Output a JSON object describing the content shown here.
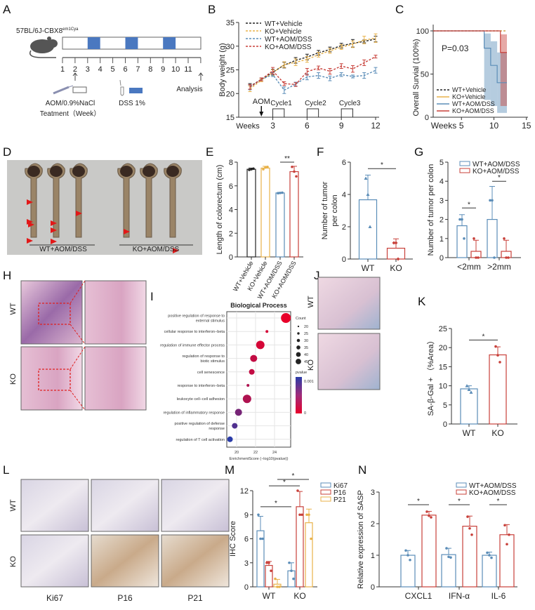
{
  "panel_letters": [
    "A",
    "B",
    "C",
    "D",
    "E",
    "F",
    "G",
    "H",
    "I",
    "J",
    "K",
    "L",
    "M",
    "N"
  ],
  "panel_a": {
    "strain": "57BL/6J-CBX8",
    "strain_sup": "em1Cya",
    "week_labels": [
      "1",
      "2",
      "3",
      "4",
      "5",
      "6",
      "7",
      "8",
      "9",
      "10",
      "11"
    ],
    "dss_weeks": [
      3,
      6,
      9
    ],
    "treatment_label": "AOM/0.9%NaCl",
    "treatment_sub": "Teatment（Week）",
    "dss_label": "DSS 1%",
    "analysis_label": "Analysis",
    "colors": {
      "dss": "#4a78c0"
    }
  },
  "panel_d": {
    "wt_label": "WT+AOM/DSS",
    "ko_label": "KO+AOM/DSS"
  },
  "panel_h": {
    "row_labels": [
      "WT",
      "KO"
    ]
  },
  "panel_j": {
    "row_labels": [
      "WT",
      "KO"
    ]
  },
  "panel_l": {
    "row_labels": [
      "WT",
      "KO"
    ],
    "col_labels": [
      "Ki67",
      "P16",
      "P21"
    ]
  },
  "colors": {
    "wt_vehicle": "#222222",
    "ko_vehicle": "#e8b24a",
    "wt_aom": "#5b8db8",
    "ko_aom": "#c8403a",
    "p21": "#e8b24a"
  },
  "chart_data": [
    {
      "id": "B",
      "type": "line",
      "ylabel": "Body weight (g)",
      "xlabel": "Weeks",
      "ylim": [
        15,
        35
      ],
      "yticks": [
        15,
        20,
        25,
        30,
        35
      ],
      "xticks": [
        3,
        6,
        9,
        12
      ],
      "x": [
        1,
        2,
        3,
        4,
        5,
        6,
        7,
        8,
        9,
        10,
        11,
        12
      ],
      "series": [
        {
          "name": "WT+Vehicle",
          "color": "#222222",
          "values": [
            21.5,
            23,
            24.5,
            26,
            27,
            27.7,
            28.6,
            29.3,
            30.1,
            30.6,
            31,
            31.5
          ],
          "error": [
            0.6,
            0.3,
            0.6,
            0.6,
            0.6,
            0.6,
            0.5,
            0.5,
            0.5,
            0.8,
            0.3,
            0.6
          ]
        },
        {
          "name": "KO+Vehicle",
          "color": "#e8b24a",
          "values": [
            21,
            22.8,
            24.4,
            26.1,
            26.6,
            27.2,
            28.2,
            29,
            29.8,
            30.4,
            31.3,
            31.7
          ],
          "error": [
            0.6,
            0.3,
            0.6,
            0.6,
            0.7,
            0.6,
            0.5,
            0.5,
            0.5,
            0.7,
            0.8,
            0.9
          ]
        },
        {
          "name": "WT+AOM/DSS",
          "color": "#5b8db8",
          "values": [
            21.3,
            23,
            24,
            20.7,
            22,
            23.5,
            23.8,
            23.2,
            24,
            23.6,
            23.8,
            24.9
          ],
          "error": [
            0.5,
            0.3,
            0.4,
            0.7,
            0.4,
            0.6,
            0.6,
            0.5,
            0.4,
            0.3,
            0.6,
            0.6
          ]
        },
        {
          "name": "KO+AOM/DSS",
          "color": "#c8403a",
          "values": [
            21.4,
            23,
            24.8,
            22.1,
            21.9,
            24.6,
            25.4,
            24.7,
            25.8,
            25.2,
            26.5,
            27.8
          ],
          "error": [
            0.5,
            0.3,
            0.7,
            0.4,
            0.4,
            0.7,
            0.4,
            0.6,
            0.5,
            0.7,
            0.6,
            0.3
          ]
        }
      ],
      "annotations": {
        "arrow_label": "AOM",
        "arrow_week": 2,
        "cycles": [
          {
            "label": "Cycle1",
            "start": 3
          },
          {
            "label": "Cycle2",
            "start": 6
          },
          {
            "label": "Cycle3",
            "start": 9
          }
        ]
      }
    },
    {
      "id": "C",
      "type": "line",
      "ylabel": "Overall Survial (100%)",
      "xlabel": "Weeks",
      "ylim": [
        0,
        100
      ],
      "yticks": [
        0,
        50,
        100
      ],
      "xlim": [
        0,
        15
      ],
      "xticks": [
        5,
        10,
        15
      ],
      "pvalue_label": "P=0.03",
      "series": [
        {
          "name": "WT+Vehicle",
          "color": "#222222",
          "steps": [
            [
              0,
              100
            ],
            [
              12,
              100
            ]
          ]
        },
        {
          "name": "KO+Vehicle",
          "color": "#e8b24a",
          "steps": [
            [
              0,
              100
            ],
            [
              12,
              100
            ]
          ]
        },
        {
          "name": "WT+AOM/DSS",
          "color": "#5b8db8",
          "steps": [
            [
              0,
              100
            ],
            [
              8.5,
              80
            ],
            [
              9.5,
              60
            ],
            [
              10.5,
              40
            ],
            [
              12,
              40
            ]
          ],
          "ci": [
            [
              8.5,
              20,
              97
            ],
            [
              9.5,
              13,
              88
            ],
            [
              10.5,
              5,
              75
            ],
            [
              12,
              5,
              75
            ]
          ]
        },
        {
          "name": "KO+AOM/DSS",
          "color": "#c8403a",
          "steps": [
            [
              0,
              100
            ],
            [
              11,
              75
            ],
            [
              12,
              75
            ]
          ],
          "ci": [
            [
              11,
              13,
              96
            ],
            [
              12,
              13,
              96
            ]
          ]
        }
      ]
    },
    {
      "id": "E",
      "type": "bar",
      "ylabel": "Length of colorectum (cm)",
      "ylim": [
        0,
        8
      ],
      "yticks": [
        0,
        2,
        4,
        6,
        8
      ],
      "groups": [
        "WT+Vehicle",
        "KO+Vehicle",
        "WT+AOM/DSS",
        "KO+AOM/DSS"
      ],
      "series": [
        {
          "name": "WT+Vehicle",
          "color": "#222222"
        },
        {
          "name": "KO+Vehicle",
          "color": "#e8b24a"
        },
        {
          "name": "WT+AOM/DSS",
          "color": "#5b8db8"
        },
        {
          "name": "KO+AOM/DSS",
          "color": "#c8403a"
        }
      ],
      "bars": [
        {
          "group": 0,
          "series": 0,
          "value": 7.4,
          "error": 0.1,
          "points": [
            7.35,
            7.4,
            7.45
          ]
        },
        {
          "group": 1,
          "series": 1,
          "value": 7.5,
          "error": 0.15,
          "points": [
            7.4,
            7.55,
            7.6
          ]
        },
        {
          "group": 2,
          "series": 2,
          "value": 5.4,
          "error": 0.05,
          "points": [
            5.38,
            5.4,
            5.42
          ]
        },
        {
          "group": 3,
          "series": 3,
          "value": 7.2,
          "error": 0.45,
          "points": [
            7.6,
            7.2,
            6.8
          ]
        }
      ],
      "significance": [
        {
          "from": 2,
          "to": 3,
          "y": 8.0,
          "label": "**"
        }
      ]
    },
    {
      "id": "F",
      "type": "bar",
      "ylabel": [
        "Number of tumor",
        "per colon"
      ],
      "ylim": [
        0,
        6
      ],
      "yticks": [
        0,
        2,
        4,
        6
      ],
      "groups": [
        "WT",
        "KO"
      ],
      "series": [
        {
          "name": "WT",
          "color": "#5b8db8",
          "marker": "triangle"
        },
        {
          "name": "KO",
          "color": "#c8403a",
          "marker": "diamond"
        }
      ],
      "bars": [
        {
          "group": 0,
          "series": 0,
          "value": 3.67,
          "error": 1.53,
          "points": [
            5,
            4,
            2
          ]
        },
        {
          "group": 1,
          "series": 1,
          "value": 0.67,
          "error": 0.58,
          "points": [
            1,
            1,
            0
          ]
        }
      ],
      "significance": [
        {
          "from": 0,
          "to": 1,
          "y": 5.6,
          "label": "*"
        }
      ]
    },
    {
      "id": "G",
      "type": "bar",
      "ylabel": "Number of tumor per colon",
      "ylim": [
        0,
        5
      ],
      "yticks": [
        0,
        1,
        2,
        3,
        4,
        5
      ],
      "groups": [
        "<2mm",
        ">2mm"
      ],
      "series": [
        {
          "name": "WT+AOM/DSS",
          "color": "#5b8db8"
        },
        {
          "name": "KO+AOM/DSS",
          "color": "#c8403a"
        }
      ],
      "bars": [
        {
          "group": 0,
          "series": 0,
          "value": 1.67,
          "error": 0.58,
          "points": [
            2,
            2,
            1
          ]
        },
        {
          "group": 0,
          "series": 1,
          "value": 0.33,
          "error": 0.58,
          "points": [
            1,
            0,
            0
          ]
        },
        {
          "group": 1,
          "series": 0,
          "value": 2.0,
          "error": 1.73,
          "points": [
            3,
            3,
            0
          ]
        },
        {
          "group": 1,
          "series": 1,
          "value": 0.33,
          "error": 0.58,
          "points": [
            1,
            0,
            0
          ]
        }
      ],
      "significance": [
        {
          "from": 0,
          "to": 1,
          "y": 2.6,
          "label": "*"
        },
        {
          "from": 2,
          "to": 3,
          "y": 4.0,
          "label": "*"
        }
      ]
    },
    {
      "id": "I",
      "type": "scatter",
      "title": "Biological Process",
      "xlabel": "EnrichmentScore (−log10(pvalue))",
      "xlim": [
        19,
        25.8
      ],
      "xticks": [
        20,
        22,
        24
      ],
      "terms": [
        {
          "term": "positive regulation of response to external stimulus",
          "score": 25.2,
          "count": 45,
          "pvalue": 0.0
        },
        {
          "term": "cellular response to interferon−beta",
          "score": 23.2,
          "count": 20,
          "pvalue": 0.0001
        },
        {
          "term": "regulation of immune effector process",
          "score": 22.5,
          "count": 40,
          "pvalue": 0.0001
        },
        {
          "term": "regulation of response to biotic stimulus",
          "score": 21.8,
          "count": 35,
          "pvalue": 0.0002
        },
        {
          "term": "cell senescence",
          "score": 21.6,
          "count": 30,
          "pvalue": 0.0002,
          "highlight": true
        },
        {
          "term": "response to interferon−beta",
          "score": 21.2,
          "count": 20,
          "pvalue": 0.0003
        },
        {
          "term": "leukocyte cell−cell adhesion",
          "score": 21.1,
          "count": 40,
          "pvalue": 0.0003
        },
        {
          "term": "regulation of inflammatory response",
          "score": 20.2,
          "count": 35,
          "pvalue": 0.0006
        },
        {
          "term": "positive regulation of defense response",
          "score": 19.8,
          "count": 30,
          "pvalue": 0.0008
        },
        {
          "term": "regulation of T cell activation",
          "score": 19.3,
          "count": 30,
          "pvalue": 0.001
        }
      ],
      "size_legend": {
        "title": "Count",
        "values": [
          20,
          25,
          30,
          35,
          40,
          45
        ]
      },
      "color_legend": {
        "title": "pvalue",
        "max_label": "0.001",
        "min_label": "0",
        "colors": [
          "#e8002a",
          "#2a3ca8"
        ]
      }
    },
    {
      "id": "K",
      "type": "bar",
      "ylabel": "SA-β-Gal + （%Area）",
      "ylim": [
        0,
        25
      ],
      "yticks": [
        0,
        5,
        10,
        15,
        20,
        25
      ],
      "groups": [
        "WT",
        "KO"
      ],
      "series": [
        {
          "name": "WT",
          "color": "#5b8db8",
          "marker": "triangle"
        },
        {
          "name": "KO",
          "color": "#c8403a"
        }
      ],
      "bars": [
        {
          "group": 0,
          "series": 0,
          "value": 9.2,
          "error": 0.8,
          "points": [
            10,
            9,
            8.3
          ]
        },
        {
          "group": 1,
          "series": 1,
          "value": 18.1,
          "error": 2.1,
          "points": [
            20.3,
            18,
            16.2
          ]
        }
      ],
      "significance": [
        {
          "from": 0,
          "to": 1,
          "y": 22,
          "label": "*"
        }
      ]
    },
    {
      "id": "M",
      "type": "bar",
      "ylabel": "IHC Score",
      "ylim": [
        0,
        12
      ],
      "yticks": [
        0,
        3,
        6,
        9,
        12
      ],
      "groups": [
        "WT",
        "KO"
      ],
      "series": [
        {
          "name": "Ki67",
          "color": "#5b8db8"
        },
        {
          "name": "P16",
          "color": "#c8403a"
        },
        {
          "name": "P21",
          "color": "#e8b24a"
        }
      ],
      "bars": [
        {
          "group": 0,
          "series": 0,
          "value": 7,
          "error": 1.8,
          "points": [
            9,
            6,
            6
          ]
        },
        {
          "group": 0,
          "series": 1,
          "value": 2.67,
          "error": 0.5,
          "points": [
            3,
            3,
            2
          ]
        },
        {
          "group": 0,
          "series": 2,
          "value": 0.33,
          "error": 0.6,
          "points": [
            1,
            0,
            0
          ]
        },
        {
          "group": 1,
          "series": 0,
          "value": 2,
          "error": 1,
          "points": [
            3,
            2,
            1
          ]
        },
        {
          "group": 1,
          "series": 1,
          "value": 10,
          "error": 1.9,
          "points": [
            12,
            9,
            9
          ]
        },
        {
          "group": 1,
          "series": 2,
          "value": 8,
          "error": 1.7,
          "points": [
            9,
            9,
            6
          ]
        }
      ],
      "significance": [
        {
          "from": 0,
          "to": 3,
          "y": 10,
          "label": "*"
        },
        {
          "from": 1,
          "to": 4,
          "y": 12.6,
          "label": "*"
        },
        {
          "from": 2,
          "to": 5,
          "y": 13.4,
          "label": "*"
        }
      ]
    },
    {
      "id": "N",
      "type": "bar",
      "ylabel": "Relative expression of SASP",
      "ylim": [
        0,
        3
      ],
      "yticks": [
        0,
        1,
        2,
        3
      ],
      "groups": [
        "CXCL1",
        "IFN-α",
        "IL-6"
      ],
      "series": [
        {
          "name": "WT+AOM/DSS",
          "color": "#5b8db8"
        },
        {
          "name": "KO+AOM/DSS",
          "color": "#c8403a"
        }
      ],
      "bars": [
        {
          "group": 0,
          "series": 0,
          "value": 1.0,
          "error": 0.15,
          "points": [
            1.15,
            1.0,
            0.85
          ]
        },
        {
          "group": 0,
          "series": 1,
          "value": 2.27,
          "error": 0.12,
          "points": [
            2.38,
            2.25,
            2.2
          ]
        },
        {
          "group": 1,
          "series": 0,
          "value": 1.02,
          "error": 0.2,
          "points": [
            1.22,
            0.95,
            0.93
          ]
        },
        {
          "group": 1,
          "series": 1,
          "value": 1.92,
          "error": 0.32,
          "points": [
            2.22,
            1.85,
            1.65
          ]
        },
        {
          "group": 2,
          "series": 0,
          "value": 1.0,
          "error": 0.1,
          "points": [
            1.08,
            1.0,
            0.92
          ]
        },
        {
          "group": 2,
          "series": 1,
          "value": 1.65,
          "error": 0.32,
          "points": [
            1.95,
            1.35,
            1.65
          ]
        }
      ],
      "significance": [
        {
          "from": 0,
          "to": 1,
          "y": 2.6,
          "label": "*"
        },
        {
          "from": 2,
          "to": 3,
          "y": 2.6,
          "label": "*"
        },
        {
          "from": 4,
          "to": 5,
          "y": 2.6,
          "label": "*"
        }
      ]
    }
  ]
}
